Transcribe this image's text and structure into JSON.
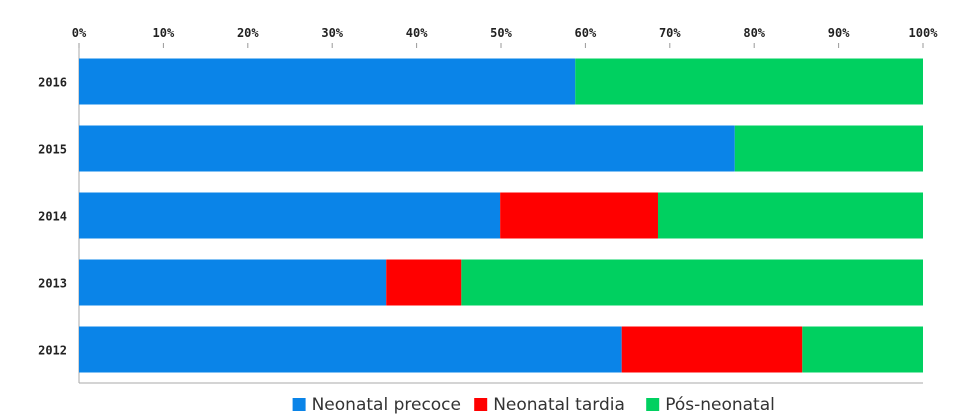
{
  "chart_data": {
    "type": "stacked_barh",
    "categories": [
      "2016",
      "2015",
      "2014",
      "2013",
      "2012"
    ],
    "series": [
      {
        "name": "Neonatal precoce",
        "color": "#0a84e8",
        "values": [
          58.8,
          77.7,
          49.9,
          36.4,
          64.3
        ]
      },
      {
        "name": "Neonatal tardia",
        "color": "#ff0000",
        "values": [
          0,
          0,
          18.7,
          8.9,
          21.4
        ]
      },
      {
        "name": "Pós-neonatal",
        "color": "#00d060",
        "values": [
          41.2,
          22.3,
          31.4,
          54.7,
          14.3
        ]
      }
    ],
    "xlim": [
      0,
      100
    ],
    "xticks": [
      {
        "value": 0,
        "label": "0%"
      },
      {
        "value": 10,
        "label": "10%"
      },
      {
        "value": 20,
        "label": "20%"
      },
      {
        "value": 30,
        "label": "30%"
      },
      {
        "value": 40,
        "label": "40%"
      },
      {
        "value": 50,
        "label": "50%"
      },
      {
        "value": 60,
        "label": "60%"
      },
      {
        "value": 70,
        "label": "70%"
      },
      {
        "value": 80,
        "label": "80%"
      },
      {
        "value": 90,
        "label": "90%"
      },
      {
        "value": 100,
        "label": "100%"
      }
    ],
    "legend": "bottom"
  }
}
